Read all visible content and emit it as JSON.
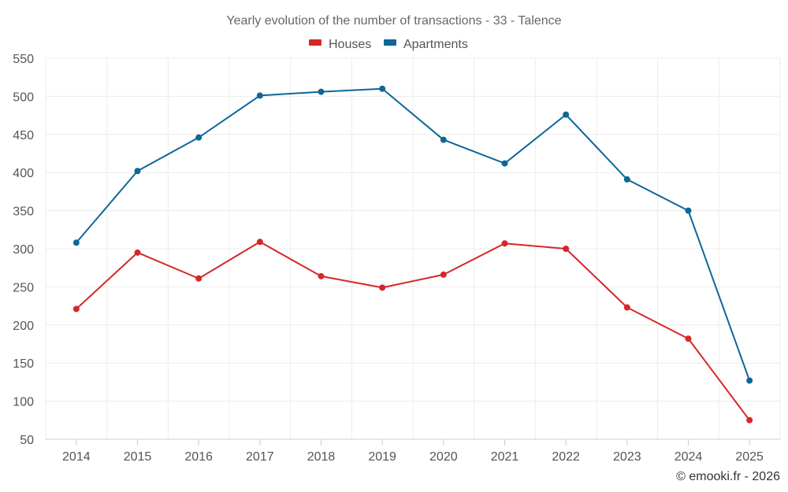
{
  "chart_data": {
    "type": "line",
    "title": "Yearly evolution of the number of transactions - 33 - Talence",
    "xlabel": "",
    "ylabel": "",
    "categories": [
      "2014",
      "2015",
      "2016",
      "2017",
      "2018",
      "2019",
      "2020",
      "2021",
      "2022",
      "2023",
      "2024",
      "2025"
    ],
    "ylim": [
      50,
      550
    ],
    "yticks": [
      50,
      100,
      150,
      200,
      250,
      300,
      350,
      400,
      450,
      500,
      550
    ],
    "grid": true,
    "legend_position": "top-center",
    "series": [
      {
        "name": "Houses",
        "color": "#d62728",
        "values": [
          221,
          295,
          261,
          309,
          264,
          249,
          266,
          307,
          300,
          223,
          182,
          75
        ]
      },
      {
        "name": "Apartments",
        "color": "#0e6699",
        "values": [
          308,
          402,
          446,
          501,
          506,
          510,
          443,
          412,
          476,
          391,
          350,
          127
        ]
      }
    ]
  },
  "credit": "© emooki.fr - 2026"
}
